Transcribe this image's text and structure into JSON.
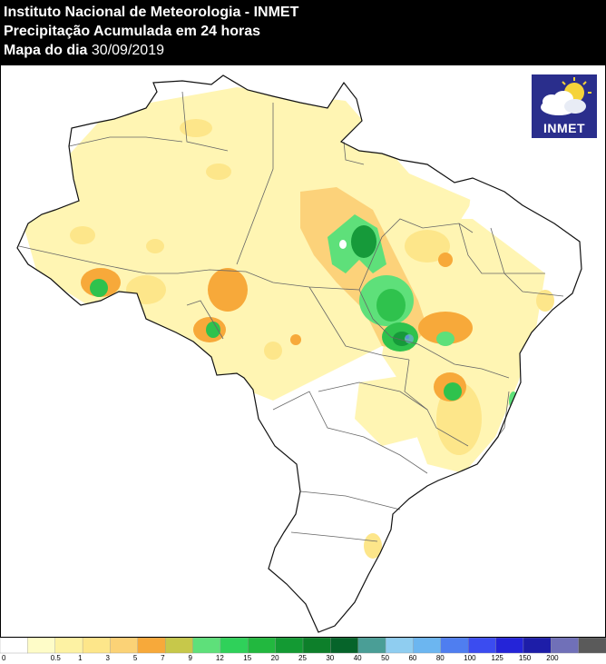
{
  "header": {
    "line1": "Instituto Nacional de Meteorologia - INMET",
    "line2": "Precipitação Acumulada em 24 horas",
    "line3_label": "Mapa do dia ",
    "line3_date": "30/09/2019"
  },
  "logo": {
    "text": "INMET",
    "icon": "cloud-sun-icon"
  },
  "map": {
    "subject": "Brasil - precipitação acumulada (mm)",
    "colors": {
      "light_yellow": "#fff5b3",
      "yellow": "#fde68a",
      "light_orange": "#fcd27a",
      "orange": "#f7a93a",
      "green_light": "#5ee07a",
      "green": "#2fc24d",
      "green_dark": "#169a3a",
      "teal": "#5ab5b0",
      "blue": "#5b8fd6"
    }
  },
  "legend": {
    "ticks": [
      "0",
      "0.5",
      "1",
      "3",
      "5",
      "7",
      "9",
      "12",
      "15",
      "20",
      "25",
      "30",
      "40",
      "50",
      "60",
      "80",
      "100",
      "125",
      "150",
      "200"
    ],
    "colors": [
      "#ffffff",
      "#fefcc8",
      "#fdf2a3",
      "#fde68a",
      "#fbd276",
      "#f7a93a",
      "#c7c84a",
      "#5ee07a",
      "#2fd15a",
      "#22b83f",
      "#139a33",
      "#0d7f2a",
      "#06642a",
      "#4a9e96",
      "#8fcdf0",
      "#6cb6f0",
      "#4f7ef0",
      "#3b4cf0",
      "#2424d8",
      "#1d1da8",
      "#7070b8",
      "#5a5a5a"
    ]
  }
}
